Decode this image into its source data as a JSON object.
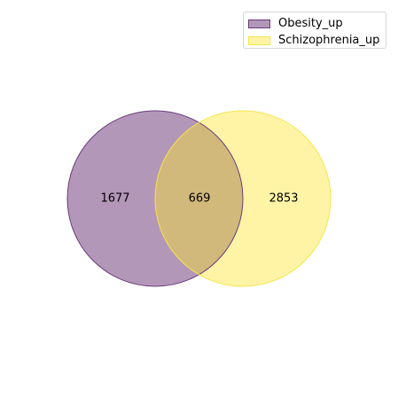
{
  "chart_data": {
    "type": "venn",
    "title": "",
    "sets": [
      {
        "name": "Obesity_up",
        "only": 1677,
        "color": "#6b3b7a",
        "fill": "#b397b9",
        "edge": "#6b3b7a"
      },
      {
        "name": "Schizophrenia_up",
        "only": 2853,
        "color": "#fde725",
        "fill": "#fff4a6",
        "edge": "#f6e54a"
      }
    ],
    "intersection": 669,
    "intersection_color": "#d1b87b",
    "legend_position": "top-right"
  }
}
